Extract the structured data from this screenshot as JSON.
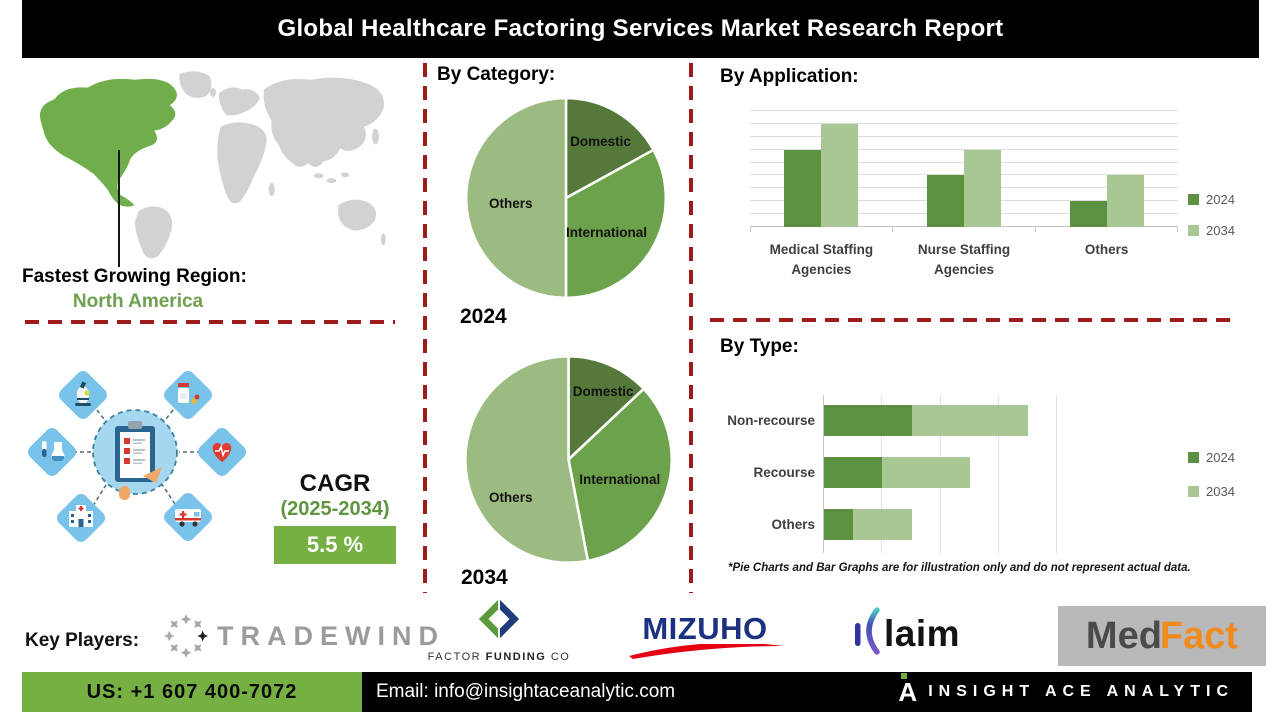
{
  "title": "Global Healthcare Factoring Services Market Research Report",
  "region": {
    "label": "Fastest Growing Region:",
    "value": "North America"
  },
  "cagr": {
    "label": "CAGR",
    "period": "(2025-2034)",
    "value": "5.5 %"
  },
  "sections": {
    "category": "By Category:",
    "application": "By Application:",
    "type": "By Type:"
  },
  "chart_data": [
    {
      "type": "pie",
      "name": "category-2024",
      "title": "By Category:",
      "year_label": "2024",
      "labels": [
        "Domestic",
        "International",
        "Others"
      ],
      "values": [
        17,
        33,
        50
      ],
      "colors": [
        "#55793a",
        "#6da24c",
        "#9cbb80"
      ]
    },
    {
      "type": "pie",
      "name": "category-2034",
      "title": "By Category:",
      "year_label": "2034",
      "labels": [
        "Domestic",
        "International",
        "Others"
      ],
      "values": [
        13,
        34,
        53
      ],
      "colors": [
        "#55793a",
        "#6da24c",
        "#9cbb80"
      ]
    },
    {
      "type": "bar",
      "name": "application",
      "title": "By Application:",
      "categories": [
        "Medical Staffing Agencies",
        "Nurse Staffing Agencies",
        "Others"
      ],
      "series": [
        {
          "name": "2024",
          "values": [
            6,
            4,
            2
          ],
          "color": "#5b9140"
        },
        {
          "name": "2034",
          "values": [
            8,
            6,
            4
          ],
          "color": "#a9c795"
        }
      ],
      "ylim": [
        0,
        9
      ],
      "grid": "horizontal",
      "legend_position": "right"
    },
    {
      "type": "bar",
      "name": "type",
      "orientation": "horizontal-stacked",
      "title": "By Type:",
      "categories": [
        "Non-recourse",
        "Recourse",
        "Others"
      ],
      "series": [
        {
          "name": "2024",
          "values": [
            1.5,
            1.0,
            0.5
          ],
          "color": "#5b9140"
        },
        {
          "name": "2034",
          "values": [
            2.0,
            1.5,
            1.0
          ],
          "color": "#a9c795"
        }
      ],
      "xlim": [
        0,
        4.85
      ],
      "grid": "vertical",
      "legend_position": "right"
    }
  ],
  "footnote": "*Pie Charts and Bar Graphs are for illustration only and do not represent actual data.",
  "key_players": {
    "label": "Key Players:",
    "tradewind": "TRADEWIND",
    "factor_funding": {
      "pre": "FACTOR ",
      "bold": "FUNDING",
      "post": " CO"
    },
    "mizuho": "MIZUHO",
    "klaim_rest": "laim",
    "medfact": {
      "med": "Med",
      "fact": "Fact"
    }
  },
  "footer": {
    "phone": "US: +1 607 400-7072",
    "email": "Email: info@insightaceanalytic.com",
    "brand_initial": "A",
    "brand": "INSIGHT ACE ANALYTIC"
  },
  "icons": {
    "world-map": "svg-shape",
    "location-pointer-line": "css-line",
    "clipboard-checklist-icon": "svg-shape",
    "microscope-icon": "svg-shape",
    "medicine-icon": "svg-shape",
    "lab-flask-icon": "svg-shape",
    "heart-pulse-icon": "svg-shape",
    "hospital-icon": "svg-shape",
    "ambulance-icon": "svg-shape",
    "plane-circle-icon": "svg-shape",
    "factor-funding-diamond-icon": "svg-shape",
    "mizuho-swoosh-icon": "svg-shape",
    "klaim-k-icon": "svg-shape",
    "insight-ace-a-icon": "css-shape"
  },
  "colors": {
    "title_bg": "#000000",
    "accent_green": "#76b043",
    "series_2024": "#5b9140",
    "series_2034": "#a9c795",
    "red_dash": "#9e1b1b",
    "map_highlight": "#6fae4a",
    "map_land": "#d2d2d2",
    "region_text": "#6fa04e",
    "mizuho_navy": "#1b3281",
    "mizuho_red": "#e60012",
    "medfact_bg": "#b9b9b9",
    "medfact_orange": "#f18a1d",
    "factor_green": "#5a9a3a",
    "factor_navy": "#1f3d7a",
    "tradewind_gray": "#9b9b9b"
  }
}
